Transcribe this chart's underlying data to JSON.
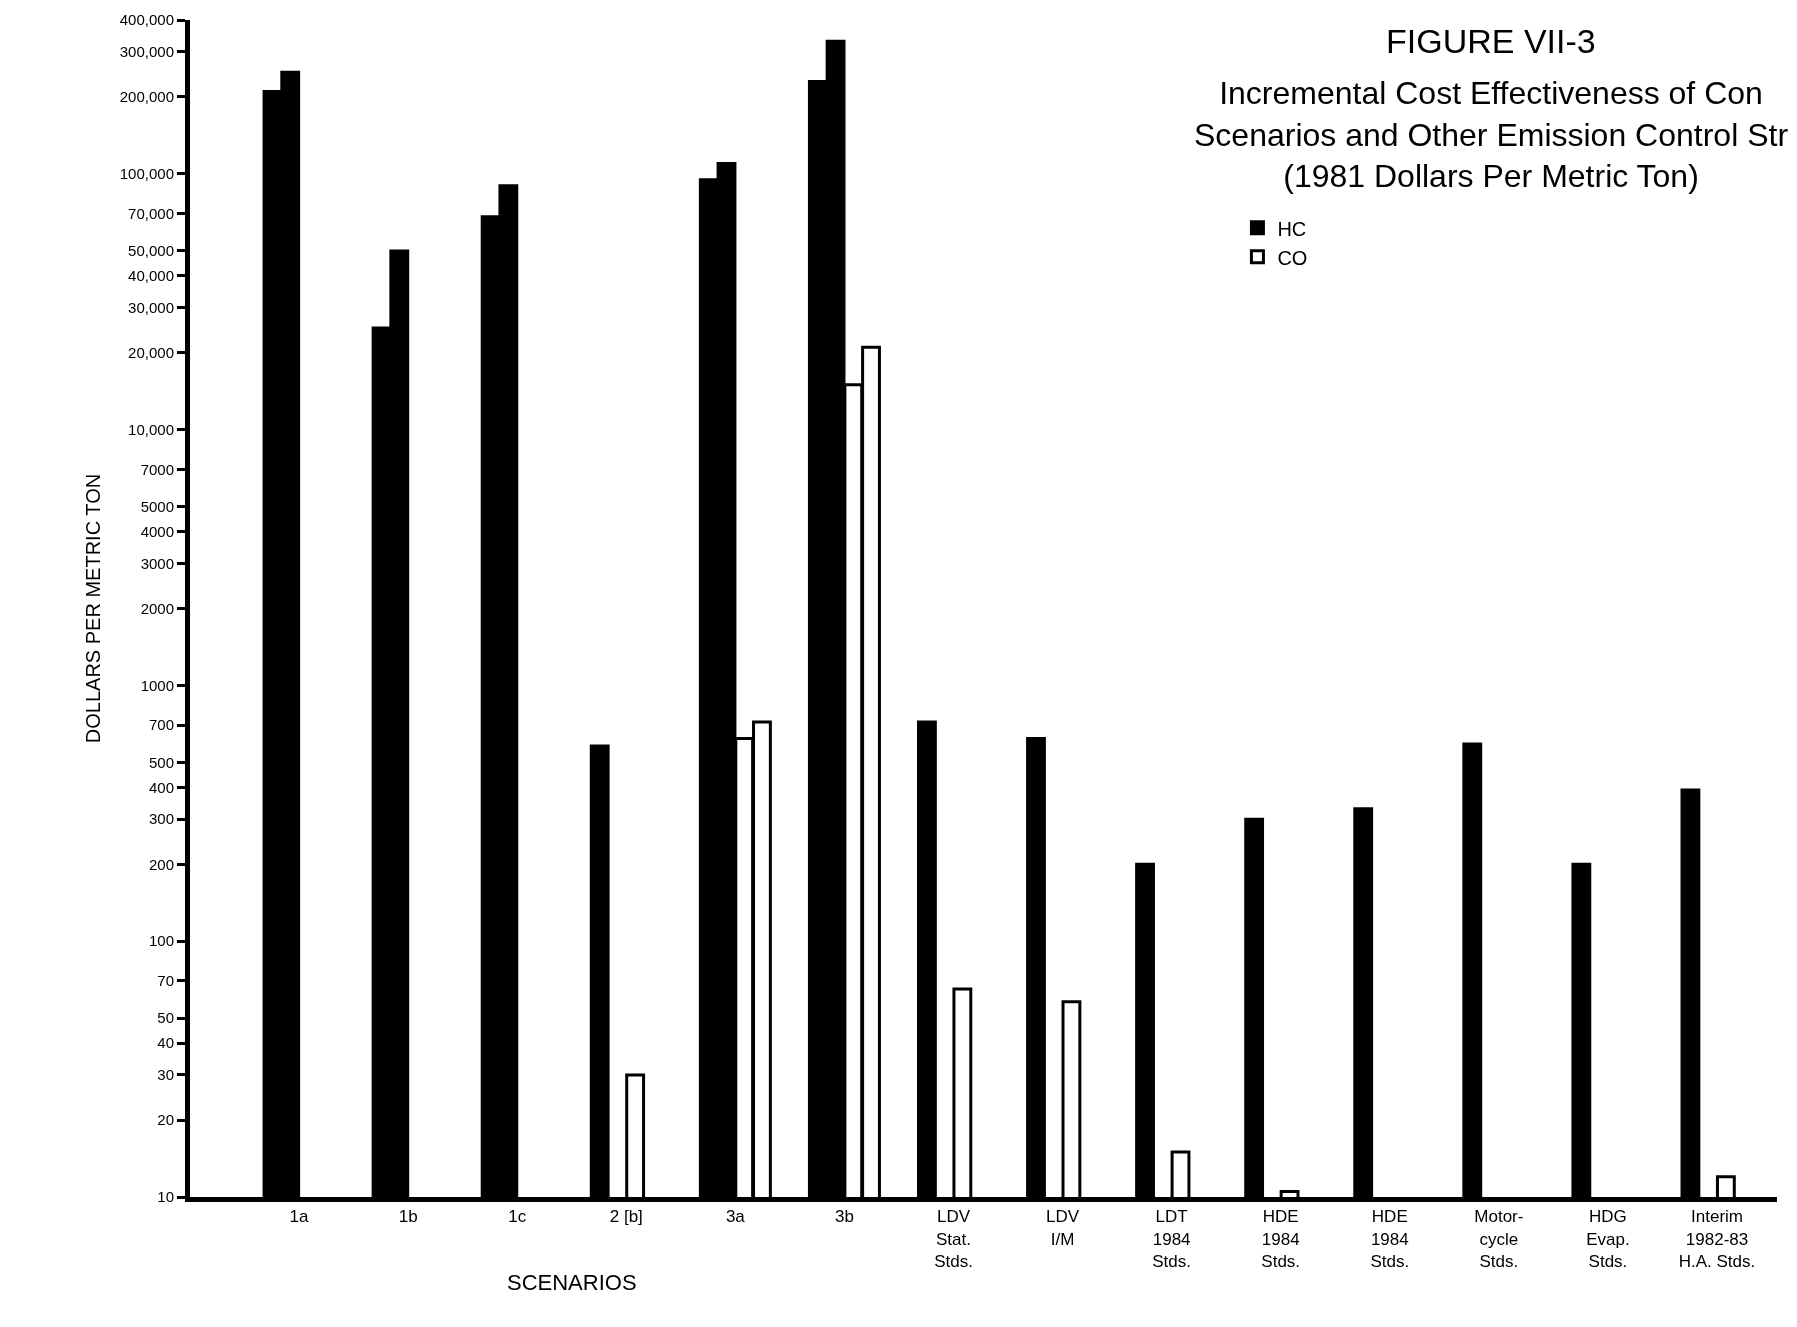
{
  "chart_data": {
    "type": "bar",
    "title": "FIGURE VII-3",
    "subtitle": "Incremental Cost Effectiveness of Con\nScenarios and Other Emission Control Str\n(1981 Dollars Per Metric Ton)",
    "ylabel": "DOLLARS PER METRIC TON",
    "annotations": [
      "SCENARIOS"
    ],
    "categories": [
      "1a",
      "1b",
      "1c",
      "2 [b]",
      "3a",
      "3b",
      "LDV\nStat.\nStds.",
      "LDV\nI/M",
      "LDT\n1984\nStds.",
      "HDE\n1984\nStds.",
      "HDE\n1984\nStds.",
      "Motor-\ncycle\nStds.",
      "HDG\nEvap.\nStds.",
      "Interim\n1982-83\nH.A. Stds."
    ],
    "series": [
      {
        "name": "HC",
        "color": "#000000",
        "values": [
          210000,
          25000,
          68000,
          580,
          95000,
          230000,
          720,
          620,
          200,
          300,
          330,
          590,
          200,
          390
        ]
      },
      {
        "color": "#000000",
        "values": [
          250000,
          50000,
          90000,
          null,
          110000,
          330000,
          null,
          null,
          null,
          null,
          null,
          null,
          null,
          null
        ]
      },
      {
        "name": "CO",
        "color": "#ffffff",
        "values": [
          null,
          null,
          null,
          30,
          620,
          15000,
          65,
          58,
          15,
          10.5,
          null,
          null,
          null,
          12
        ]
      },
      {
        "color": "#ffffff",
        "values": [
          null,
          null,
          null,
          null,
          720,
          21000,
          null,
          null,
          null,
          null,
          null,
          null,
          null,
          null
        ]
      }
    ],
    "log": true,
    "ylim": [
      10,
      400000
    ],
    "yticks": [
      10,
      20,
      30,
      40,
      50,
      70,
      100,
      200,
      300,
      400,
      500,
      700,
      1000,
      2000,
      3000,
      4000,
      5000,
      7000,
      {
        "value": 10000,
        "label": "10,000"
      },
      {
        "value": 20000,
        "label": "20,000"
      },
      {
        "value": 30000,
        "label": "30,000"
      },
      {
        "value": 40000,
        "label": "40,000"
      },
      {
        "value": 50000,
        "label": "50,000"
      },
      {
        "value": 70000,
        "label": "70,000"
      },
      {
        "value": 100000,
        "label": "100,000"
      },
      {
        "value": 200000,
        "label": "200,000"
      },
      {
        "value": 300000,
        "label": "300,000"
      },
      {
        "value": 400000,
        "label": "400,000"
      }
    ],
    "legend": "top right"
  }
}
